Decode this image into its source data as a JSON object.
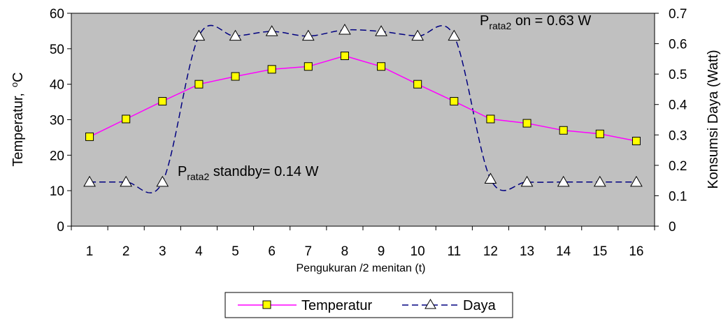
{
  "chart_data": {
    "type": "line",
    "categories": [
      "1",
      "2",
      "3",
      "4",
      "5",
      "6",
      "7",
      "8",
      "9",
      "10",
      "11",
      "12",
      "13",
      "14",
      "15",
      "16"
    ],
    "xlabel": "Pengukuran /2 menitan (t)",
    "ylabel_left": "Temperatur,",
    "ylabel_left_unit": "°C",
    "ylabel_right": "Konsumsi Daya (Watt)",
    "ylim_left": [
      0,
      60
    ],
    "yticks_left": [
      "0",
      "10",
      "20",
      "30",
      "40",
      "50",
      "60"
    ],
    "ylim_right": [
      0,
      0.7
    ],
    "yticks_right": [
      "0",
      "0.1",
      "0.2",
      "0.3",
      "0.4",
      "0.5",
      "0.6",
      "0.7"
    ],
    "grid": false,
    "plot_background": "#c0c0c0",
    "legend_position": "bottom",
    "series": [
      {
        "name": "Temperatur",
        "axis": "left",
        "color": "#ff00ff",
        "marker": "square",
        "marker_fill": "#ffff00",
        "line_style": "solid",
        "values": [
          25.2,
          30.2,
          35.2,
          40.0,
          42.2,
          44.2,
          45.0,
          48.0,
          45.0,
          40.0,
          35.2,
          30.2,
          29.0,
          27.0,
          26.0,
          24.0
        ]
      },
      {
        "name": "Daya",
        "axis": "right",
        "color": "#000080",
        "marker": "triangle",
        "marker_fill": "#ffffff",
        "line_style": "dashed",
        "values": [
          0.145,
          0.145,
          0.145,
          0.625,
          0.625,
          0.64,
          0.625,
          0.645,
          0.64,
          0.625,
          0.625,
          0.155,
          0.145,
          0.145,
          0.145,
          0.145
        ]
      }
    ],
    "annotations": [
      {
        "prefix": "P",
        "sub": "rata2",
        "text": " on = 0.63 W"
      },
      {
        "prefix": "P",
        "sub": "rata2",
        "text": " standby= 0.14 W"
      }
    ]
  }
}
